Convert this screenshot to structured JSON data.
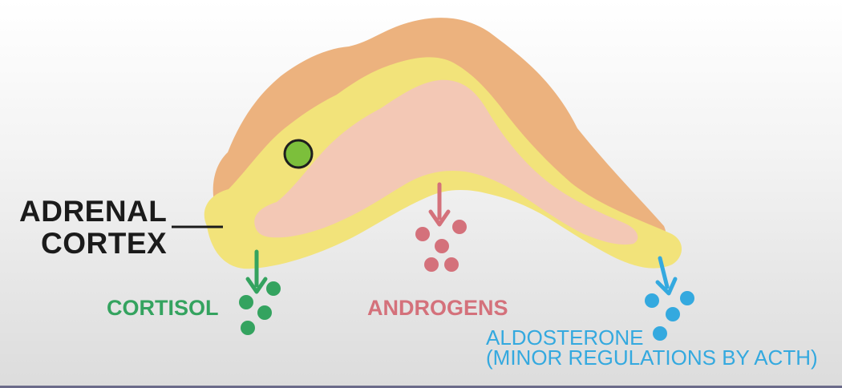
{
  "diagram": {
    "organ_label": {
      "line1": "ADRENAL",
      "line2": "CORTEX"
    },
    "hormones": {
      "cortisol": "CORTISOL",
      "androgens": "ANDROGENS",
      "aldosterone_line1": "ALDOSTERONE",
      "aldosterone_line2": "(MINOR REGULATIONS BY ACTH)"
    },
    "colors": {
      "capsule": "#ecb27e",
      "zona_glomerulosa": "#f2e37a",
      "zona_fasciculata": "#f2c6b8",
      "cortisol": "#34a35f",
      "androgens": "#d4717b",
      "aldosterone": "#34a9df",
      "marker": "#7cbf3b"
    }
  }
}
